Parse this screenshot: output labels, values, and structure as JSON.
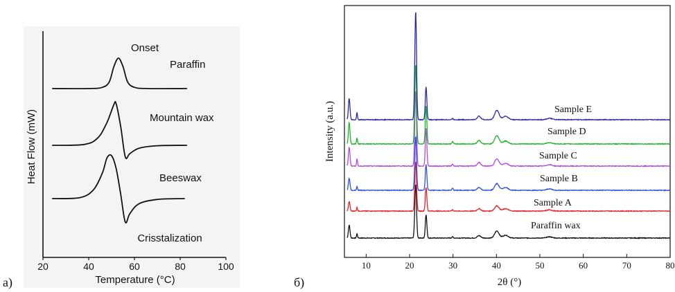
{
  "panels": {
    "a_label": "a)",
    "b_label": "б)"
  },
  "colors": {
    "black": "#111111",
    "red": "#e8202a",
    "blue": "#3050e0",
    "magenta": "#b04be0",
    "green": "#1fb52a",
    "navy": "#2a2aa8"
  },
  "chart_data": [
    {
      "type": "line",
      "panel": "a)",
      "xlabel": "Temperature (°C)",
      "ylabel": "Heat Flow (mW)",
      "xlim": [
        20,
        100
      ],
      "xticks": [
        20,
        40,
        60,
        80,
        100
      ],
      "annotations": {
        "onset": "Onset",
        "crystallization": "Crisstalization"
      },
      "series": [
        {
          "name": "Paraffin",
          "x": [
            24,
            40,
            46,
            49,
            51,
            53,
            55,
            57,
            60,
            66,
            83
          ],
          "y": [
            0,
            0,
            0.04,
            0.22,
            0.72,
            1.0,
            0.72,
            0.22,
            0.04,
            0,
            0
          ]
        },
        {
          "name": "Mountain wax",
          "x": [
            24,
            38,
            44,
            48,
            51,
            52,
            54,
            56,
            58,
            62,
            70,
            83
          ],
          "y": [
            0,
            0.02,
            0.18,
            0.55,
            0.98,
            1.0,
            0.45,
            -0.28,
            -0.2,
            -0.07,
            -0.01,
            0
          ]
        },
        {
          "name": "Beeswax",
          "x": [
            24,
            36,
            42,
            46,
            48,
            50,
            52,
            54,
            56,
            58,
            62,
            70,
            82
          ],
          "y": [
            0,
            0.02,
            0.2,
            0.6,
            0.95,
            1.0,
            0.7,
            0.1,
            -0.55,
            -0.35,
            -0.12,
            -0.02,
            0
          ]
        }
      ]
    },
    {
      "type": "line",
      "panel": "б)",
      "xlabel": "2θ (°)",
      "ylabel": "Intensity (a.u.)",
      "xlim": [
        5,
        80
      ],
      "xticks": [
        10,
        20,
        30,
        40,
        50,
        60,
        70,
        80
      ],
      "grid": false,
      "peaks_2theta": [
        6.1,
        7.9,
        21.4,
        23.8,
        29.9,
        36.0,
        40.1,
        42.1,
        52.2
      ],
      "series": [
        {
          "name": "Paraffin wax",
          "color": "#111111",
          "intensities": [
            0.55,
            0.18,
            2.3,
            1.0,
            0.05,
            0.1,
            0.3,
            0.12,
            0.05
          ]
        },
        {
          "name": "Sample A",
          "color": "#e8202a",
          "intensities": [
            0.4,
            0.15,
            2.1,
            1.0,
            0.05,
            0.1,
            0.22,
            0.1,
            0.05
          ]
        },
        {
          "name": "Sample B",
          "color": "#3050e0",
          "intensities": [
            0.5,
            0.15,
            2.3,
            1.1,
            0.08,
            0.12,
            0.28,
            0.12,
            0.06
          ]
        },
        {
          "name": "Sample C",
          "color": "#b04be0",
          "intensities": [
            0.8,
            0.3,
            3.2,
            1.6,
            0.08,
            0.15,
            0.3,
            0.12,
            0.06
          ]
        },
        {
          "name": "Sample D",
          "color": "#1fb52a",
          "intensities": [
            0.9,
            0.25,
            3.4,
            1.6,
            0.1,
            0.15,
            0.35,
            0.12,
            0.06
          ]
        },
        {
          "name": "Sample E",
          "color": "#2a2aa8",
          "intensities": [
            0.9,
            0.3,
            4.6,
            1.4,
            0.05,
            0.15,
            0.4,
            0.15,
            0.06
          ]
        }
      ]
    }
  ]
}
